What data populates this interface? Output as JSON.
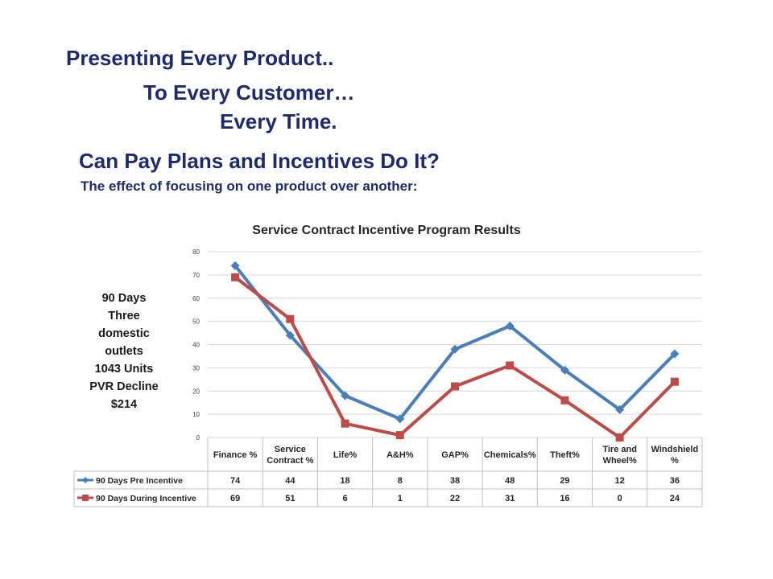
{
  "slide": {
    "line1": "Presenting Every Product..",
    "line2": "To Every Customer…",
    "line3": "Every Time.",
    "subtitle": "Can Pay Plans and Incentives Do It?",
    "caption": "The effect of focusing on one product over another:",
    "note_lines": [
      "90 Days",
      "Three",
      "domestic",
      "outlets",
      "1043 Units",
      "PVR Decline",
      "$214"
    ]
  },
  "colors": {
    "heading": "#1f2a6b",
    "pre": "#4a7ebb",
    "during": "#be4b48",
    "grid": "#d9d9d9"
  },
  "chart_data": {
    "type": "line",
    "title": "Service Contract Incentive Program Results",
    "categories": [
      "Finance %",
      "Service Contract %",
      "Life%",
      "A&H%",
      "GAP%",
      "Chemicals%",
      "Theft%",
      "Tire and Wheel%",
      "Windshield %"
    ],
    "category_lines": [
      [
        "Finance %"
      ],
      [
        "Service",
        "Contract %"
      ],
      [
        "Life%"
      ],
      [
        "A&H%"
      ],
      [
        "GAP%"
      ],
      [
        "Chemicals%"
      ],
      [
        "Theft%"
      ],
      [
        "Tire and",
        "Wheel%"
      ],
      [
        "Windshield",
        "%"
      ]
    ],
    "series": [
      {
        "name": "90 Days Pre Incentive",
        "marker": "diamond",
        "values": [
          74,
          44,
          18,
          8,
          38,
          48,
          29,
          12,
          36
        ]
      },
      {
        "name": "90 Days During Incentive",
        "marker": "square",
        "values": [
          69,
          51,
          6,
          1,
          22,
          31,
          16,
          0,
          24
        ]
      }
    ],
    "yticks": [
      0,
      10,
      20,
      30,
      40,
      50,
      60,
      70,
      80
    ],
    "ylim": [
      0,
      80
    ],
    "grid": true,
    "legend": "data table below chart"
  }
}
